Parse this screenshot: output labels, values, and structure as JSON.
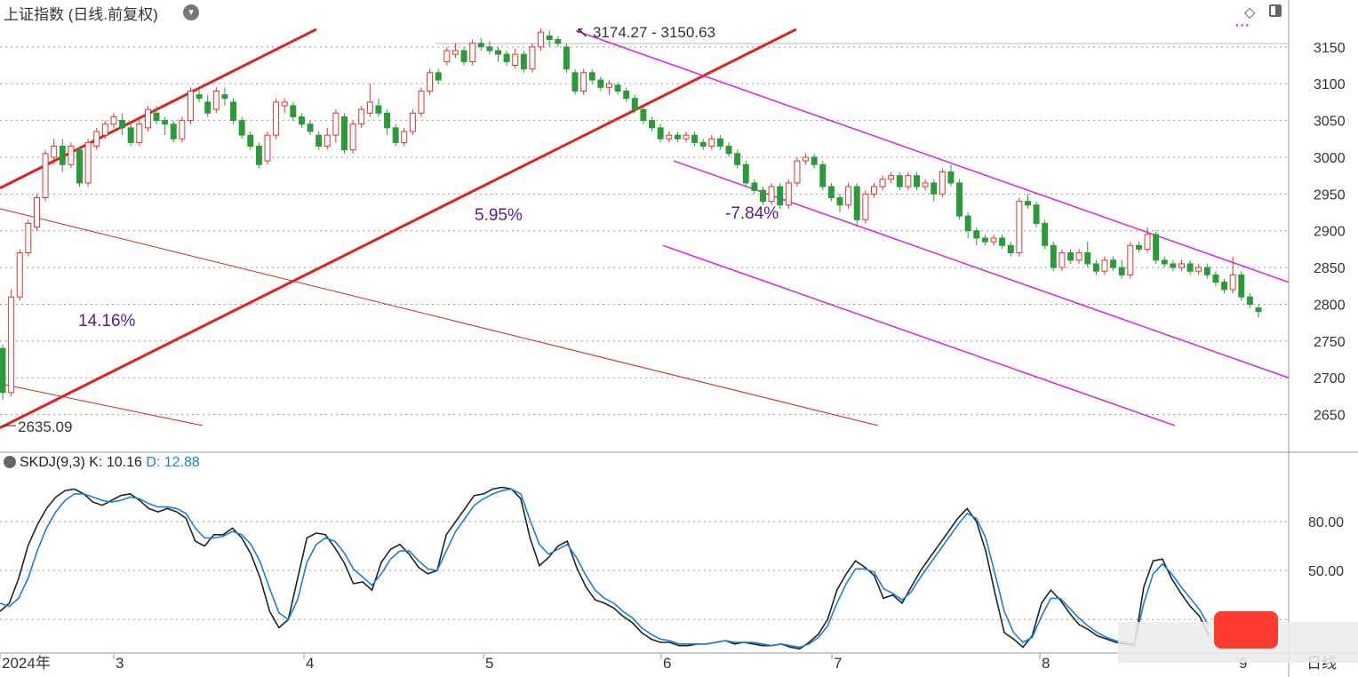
{
  "header": {
    "title": "上证指数 (日线.前复权)",
    "menu_icon": "chevron-down-icon",
    "right_icons": [
      "diamond-icon",
      "panel-icon",
      "dots-icon"
    ]
  },
  "chart_data": [
    {
      "type": "candlestick",
      "ylim": [
        2600,
        3180
      ],
      "y_ticks": [
        2650,
        2700,
        2750,
        2800,
        2850,
        2900,
        2950,
        3000,
        3050,
        3100,
        3150
      ],
      "x_labels": [
        "2024年",
        "3",
        "4",
        "5",
        "6",
        "7",
        "8",
        "9",
        "日线"
      ],
      "annotations": {
        "low_label": "2635.09",
        "high_label": "3174.27",
        "range_label": "3150.63",
        "pct_1": "14.16%",
        "pct_2": "5.95%",
        "pct_3": "-7.84%"
      },
      "colors": {
        "up": "#e8322f",
        "down": "#2a9a3a",
        "trend_red": "#dd2222",
        "channel": "#e020e0"
      },
      "candles": [
        [
          2740,
          2680,
          2745,
          2670
        ],
        [
          2680,
          2810,
          2820,
          2675
        ],
        [
          2810,
          2870,
          2875,
          2805
        ],
        [
          2870,
          2910,
          2915,
          2865
        ],
        [
          2905,
          2945,
          2950,
          2900
        ],
        [
          2945,
          3005,
          3010,
          2940
        ],
        [
          3000,
          3015,
          3025,
          2990
        ],
        [
          3015,
          2990,
          3025,
          2980
        ],
        [
          2990,
          3015,
          3020,
          2985
        ],
        [
          3010,
          2965,
          3015,
          2960
        ],
        [
          2965,
          3020,
          3025,
          2960
        ],
        [
          3015,
          3035,
          3040,
          3010
        ],
        [
          3030,
          3045,
          3050,
          3025
        ],
        [
          3045,
          3055,
          3060,
          3040
        ],
        [
          3050,
          3040,
          3060,
          3030
        ],
        [
          3040,
          3020,
          3045,
          3015
        ],
        [
          3020,
          3045,
          3050,
          3015
        ],
        [
          3040,
          3065,
          3070,
          3035
        ],
        [
          3060,
          3050,
          3070,
          3045
        ],
        [
          3050,
          3045,
          3055,
          3030
        ],
        [
          3045,
          3025,
          3050,
          3020
        ],
        [
          3025,
          3050,
          3055,
          3020
        ],
        [
          3050,
          3090,
          3095,
          3045
        ],
        [
          3085,
          3080,
          3095,
          3075
        ],
        [
          3075,
          3060,
          3085,
          3055
        ],
        [
          3065,
          3090,
          3095,
          3060
        ],
        [
          3085,
          3080,
          3095,
          3070
        ],
        [
          3075,
          3050,
          3080,
          3045
        ],
        [
          3050,
          3030,
          3055,
          3025
        ],
        [
          3030,
          3015,
          3035,
          3010
        ],
        [
          3015,
          2990,
          3020,
          2985
        ],
        [
          2995,
          3030,
          3035,
          2990
        ],
        [
          3030,
          3075,
          3080,
          3025
        ],
        [
          3070,
          3075,
          3080,
          3060
        ],
        [
          3070,
          3055,
          3075,
          3050
        ],
        [
          3055,
          3045,
          3060,
          3040
        ],
        [
          3045,
          3035,
          3050,
          3030
        ],
        [
          3030,
          3015,
          3035,
          3010
        ],
        [
          3015,
          3030,
          3040,
          3010
        ],
        [
          3030,
          3060,
          3065,
          3020
        ],
        [
          3055,
          3010,
          3060,
          3005
        ],
        [
          3010,
          3045,
          3050,
          3005
        ],
        [
          3045,
          3065,
          3070,
          3040
        ],
        [
          3060,
          3075,
          3100,
          3055
        ],
        [
          3070,
          3060,
          3080,
          3055
        ],
        [
          3060,
          3040,
          3065,
          3030
        ],
        [
          3040,
          3020,
          3045,
          3015
        ],
        [
          3020,
          3035,
          3040,
          3015
        ],
        [
          3035,
          3060,
          3065,
          3030
        ],
        [
          3060,
          3090,
          3095,
          3055
        ],
        [
          3090,
          3115,
          3120,
          3085
        ],
        [
          3115,
          3105,
          3120,
          3100
        ],
        [
          3130,
          3145,
          3150,
          3125
        ],
        [
          3140,
          3145,
          3155,
          3135
        ],
        [
          3145,
          3130,
          3150,
          3125
        ],
        [
          3130,
          3155,
          3160,
          3125
        ],
        [
          3155,
          3150,
          3162,
          3145
        ],
        [
          3150,
          3145,
          3158,
          3140
        ],
        [
          3145,
          3140,
          3150,
          3130
        ],
        [
          3140,
          3130,
          3145,
          3125
        ],
        [
          3125,
          3140,
          3148,
          3120
        ],
        [
          3140,
          3120,
          3145,
          3115
        ],
        [
          3120,
          3150,
          3155,
          3115
        ],
        [
          3150,
          3170,
          3175,
          3145
        ],
        [
          3165,
          3160,
          3172,
          3150
        ],
        [
          3160,
          3155,
          3165,
          3150
        ],
        [
          3150,
          3120,
          3155,
          3115
        ],
        [
          3115,
          3090,
          3120,
          3085
        ],
        [
          3090,
          3115,
          3120,
          3085
        ],
        [
          3115,
          3105,
          3120,
          3100
        ],
        [
          3105,
          3095,
          3110,
          3090
        ],
        [
          3095,
          3100,
          3105,
          3085
        ],
        [
          3098,
          3090,
          3102,
          3085
        ],
        [
          3090,
          3080,
          3095,
          3075
        ],
        [
          3080,
          3065,
          3085,
          3060
        ],
        [
          3065,
          3050,
          3070,
          3045
        ],
        [
          3050,
          3040,
          3055,
          3035
        ],
        [
          3040,
          3025,
          3045,
          3020
        ],
        [
          3025,
          3030,
          3035,
          3020
        ],
        [
          3030,
          3025,
          3035,
          3020
        ],
        [
          3025,
          3030,
          3035,
          3020
        ],
        [
          3030,
          3020,
          3035,
          3015
        ],
        [
          3020,
          3015,
          3025,
          3010
        ],
        [
          3015,
          3025,
          3030,
          3010
        ],
        [
          3025,
          3015,
          3030,
          3010
        ],
        [
          3015,
          3005,
          3020,
          3000
        ],
        [
          3005,
          2990,
          3010,
          2985
        ],
        [
          2990,
          2965,
          2995,
          2960
        ],
        [
          2965,
          2955,
          2970,
          2950
        ],
        [
          2955,
          2940,
          2960,
          2935
        ],
        [
          2940,
          2960,
          2965,
          2935
        ],
        [
          2960,
          2935,
          2965,
          2930
        ],
        [
          2935,
          2965,
          2970,
          2930
        ],
        [
          2965,
          2995,
          3000,
          2960
        ],
        [
          2995,
          3000,
          3005,
          2990
        ],
        [
          3000,
          2990,
          3005,
          2985
        ],
        [
          2990,
          2960,
          2995,
          2955
        ],
        [
          2960,
          2945,
          2965,
          2940
        ],
        [
          2945,
          2935,
          2950,
          2925
        ],
        [
          2935,
          2960,
          2965,
          2930
        ],
        [
          2960,
          2915,
          2965,
          2905
        ],
        [
          2915,
          2950,
          2955,
          2910
        ],
        [
          2950,
          2960,
          2965,
          2945
        ],
        [
          2960,
          2970,
          2975,
          2955
        ],
        [
          2970,
          2975,
          2980,
          2965
        ],
        [
          2975,
          2960,
          2980,
          2955
        ],
        [
          2960,
          2975,
          2980,
          2955
        ],
        [
          2975,
          2960,
          2980,
          2955
        ],
        [
          2960,
          2965,
          2970,
          2955
        ],
        [
          2965,
          2950,
          2970,
          2940
        ],
        [
          2950,
          2980,
          2985,
          2945
        ],
        [
          2980,
          2965,
          2990,
          2960
        ],
        [
          2965,
          2920,
          2970,
          2915
        ],
        [
          2920,
          2900,
          2925,
          2890
        ],
        [
          2900,
          2890,
          2905,
          2880
        ],
        [
          2890,
          2885,
          2895,
          2880
        ],
        [
          2885,
          2890,
          2895,
          2880
        ],
        [
          2890,
          2880,
          2895,
          2875
        ],
        [
          2880,
          2870,
          2885,
          2865
        ],
        [
          2870,
          2940,
          2945,
          2865
        ],
        [
          2940,
          2935,
          2950,
          2930
        ],
        [
          2935,
          2910,
          2940,
          2905
        ],
        [
          2910,
          2880,
          2915,
          2875
        ],
        [
          2880,
          2850,
          2885,
          2845
        ],
        [
          2850,
          2870,
          2875,
          2845
        ],
        [
          2870,
          2860,
          2875,
          2855
        ],
        [
          2860,
          2870,
          2875,
          2855
        ],
        [
          2870,
          2855,
          2885,
          2850
        ],
        [
          2855,
          2845,
          2860,
          2840
        ],
        [
          2845,
          2860,
          2865,
          2840
        ],
        [
          2860,
          2850,
          2865,
          2845
        ],
        [
          2850,
          2840,
          2860,
          2835
        ],
        [
          2840,
          2880,
          2885,
          2835
        ],
        [
          2880,
          2875,
          2885,
          2870
        ],
        [
          2875,
          2895,
          2905,
          2870
        ],
        [
          2895,
          2860,
          2900,
          2855
        ],
        [
          2860,
          2855,
          2865,
          2850
        ],
        [
          2855,
          2850,
          2860,
          2845
        ],
        [
          2850,
          2855,
          2860,
          2845
        ],
        [
          2855,
          2845,
          2860,
          2840
        ],
        [
          2845,
          2850,
          2855,
          2840
        ],
        [
          2850,
          2840,
          2855,
          2835
        ],
        [
          2840,
          2830,
          2845,
          2825
        ],
        [
          2830,
          2820,
          2835,
          2815
        ],
        [
          2820,
          2840,
          2865,
          2815
        ],
        [
          2840,
          2810,
          2845,
          2805
        ],
        [
          2810,
          2800,
          2815,
          2795
        ],
        [
          2795,
          2790,
          2800,
          2782
        ]
      ]
    },
    {
      "type": "line",
      "legend": {
        "name": "SKDJ(9,3)",
        "k_label": "K:",
        "k_value": "10.16",
        "d_label": "D:",
        "d_value": "12.88"
      },
      "ylim": [
        0,
        110
      ],
      "y_ticks": [
        20,
        50,
        80
      ],
      "y_tick_labels": [
        "",
        "50.00",
        "80.00"
      ],
      "series": [
        {
          "name": "K",
          "color": "#222222",
          "values": [
            25,
            30,
            45,
            65,
            78,
            88,
            95,
            99,
            100,
            97,
            92,
            90,
            93,
            96,
            97,
            93,
            88,
            86,
            88,
            86,
            82,
            68,
            65,
            72,
            72,
            76,
            70,
            60,
            45,
            25,
            15,
            20,
            45,
            70,
            73,
            72,
            64,
            55,
            42,
            43,
            38,
            55,
            63,
            66,
            60,
            52,
            48,
            50,
            72,
            80,
            88,
            96,
            97,
            100,
            101,
            100,
            94,
            70,
            53,
            58,
            65,
            68,
            52,
            40,
            32,
            30,
            27,
            22,
            18,
            12,
            8,
            6,
            6,
            4,
            4,
            5,
            5,
            6,
            7,
            5,
            6,
            5,
            4,
            4,
            5,
            3,
            2,
            6,
            11,
            20,
            38,
            48,
            56,
            52,
            47,
            33,
            35,
            30,
            40,
            50,
            58,
            66,
            74,
            82,
            88,
            80,
            62,
            36,
            12,
            8,
            3,
            10,
            30,
            38,
            32,
            24,
            17,
            14,
            10,
            8,
            6,
            5,
            4,
            40,
            56,
            57,
            45,
            36,
            28,
            22,
            10
          ],
          "x_end_frac": 0.885
        },
        {
          "name": "D",
          "color": "#1a7fd6",
          "values": [
            30,
            28,
            33,
            45,
            62,
            76,
            86,
            93,
            97,
            97,
            95,
            93,
            92,
            93,
            95,
            94,
            91,
            89,
            89,
            88,
            85,
            76,
            70,
            70,
            71,
            74,
            72,
            66,
            55,
            39,
            24,
            20,
            32,
            55,
            66,
            70,
            68,
            61,
            51,
            46,
            41,
            48,
            57,
            62,
            62,
            56,
            51,
            50,
            62,
            74,
            82,
            90,
            94,
            97,
            99,
            100,
            97,
            81,
            66,
            60,
            63,
            66,
            58,
            47,
            38,
            33,
            30,
            25,
            21,
            15,
            11,
            8,
            7,
            5,
            5,
            5,
            5,
            6,
            7,
            6,
            6,
            6,
            5,
            4,
            5,
            4,
            3,
            5,
            9,
            16,
            30,
            42,
            51,
            51,
            49,
            39,
            36,
            32,
            37,
            46,
            54,
            62,
            70,
            78,
            85,
            82,
            70,
            48,
            25,
            12,
            6,
            9,
            22,
            33,
            33,
            27,
            21,
            16,
            12,
            9,
            7,
            6,
            5,
            30,
            48,
            54,
            48,
            40,
            33,
            26,
            16
          ],
          "x_end_frac": 0.885
        }
      ]
    }
  ]
}
